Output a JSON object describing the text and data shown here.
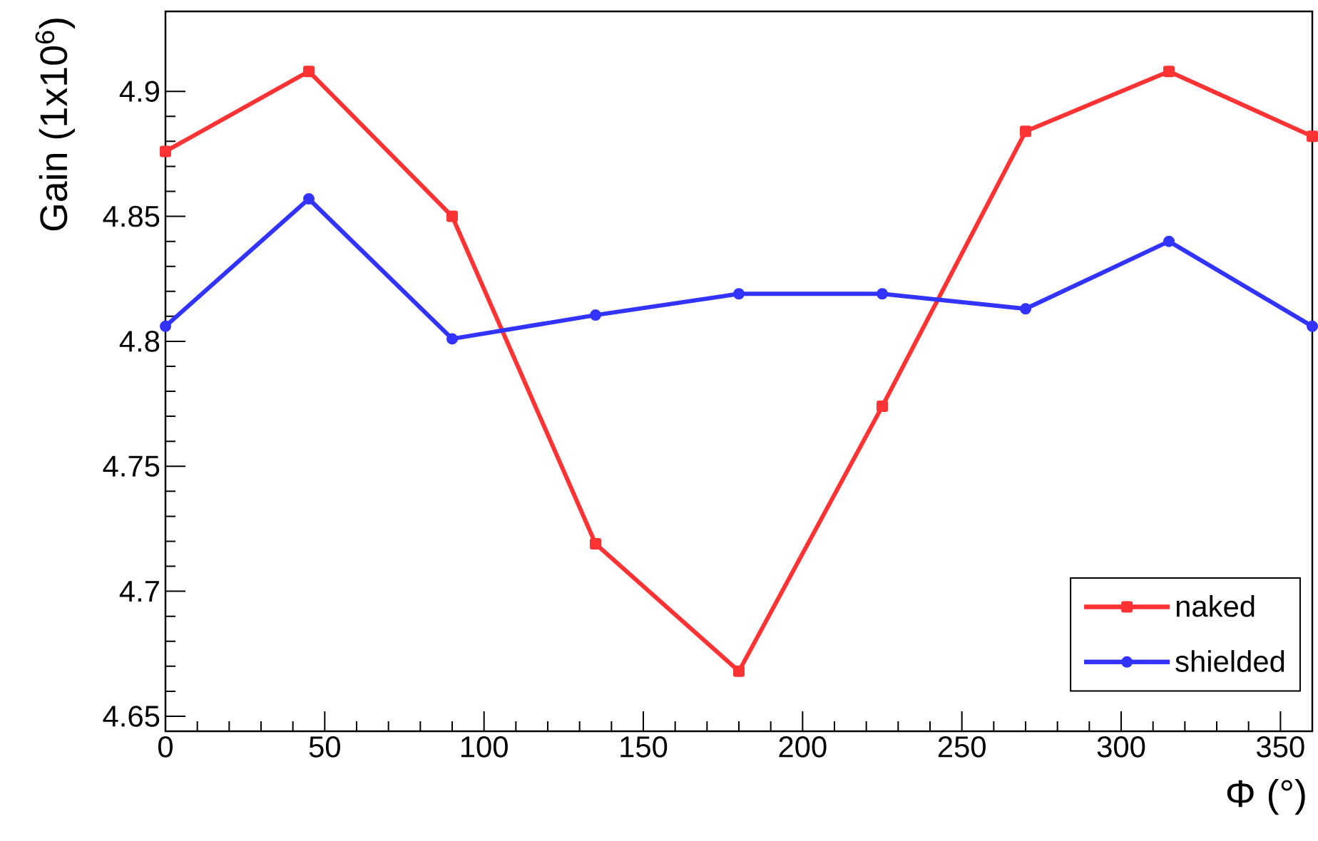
{
  "chart_data": {
    "type": "line",
    "xlabel": "Φ (°)",
    "ylabel": "Gain (1x10$^{6}$)",
    "x": [
      0,
      45,
      90,
      135,
      180,
      225,
      270,
      315,
      360
    ],
    "series": [
      {
        "name": "naked",
        "color": "#ff3333",
        "marker": "square",
        "values": [
          4.876,
          4.908,
          4.85,
          4.719,
          4.668,
          4.774,
          4.884,
          4.908,
          4.882
        ]
      },
      {
        "name": "shielded",
        "color": "#3333ff",
        "marker": "circle",
        "values": [
          4.806,
          4.857,
          4.801,
          4.8105,
          4.819,
          4.819,
          4.813,
          4.84,
          4.806
        ]
      }
    ],
    "xlim": [
      0,
      360
    ],
    "ylim": [
      4.644,
      4.932
    ],
    "xticks": [
      0,
      50,
      100,
      150,
      200,
      250,
      300,
      350
    ],
    "yticks": [
      4.65,
      4.7,
      4.75,
      4.8,
      4.85,
      4.9
    ],
    "grid": false,
    "legend": "bottom right",
    "line_style": "solid"
  }
}
